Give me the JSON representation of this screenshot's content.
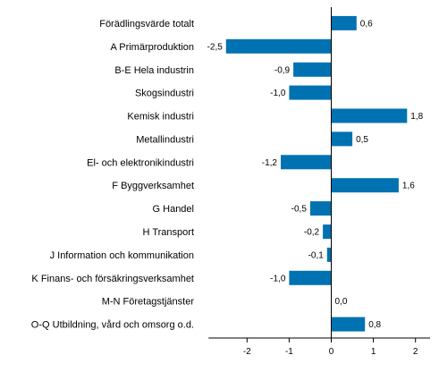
{
  "chart_data": {
    "type": "bar",
    "orientation": "horizontal",
    "categories": [
      "Förädlingsvärde totalt",
      "A Primärproduktion",
      "B-E Hela industrin",
      "Skogsindustri",
      "Kemisk industri",
      "Metallindustri",
      "El- och elektronikindustri",
      "F Byggverksamhet",
      "G Handel",
      "H Transport",
      "J Information och kommunikation",
      "K Finans- och försäkringsverksamhet",
      "M-N Företagstjänster",
      "O-Q Utbildning, vård och omsorg o.d."
    ],
    "values": [
      0.6,
      -2.5,
      -0.9,
      -1.0,
      1.8,
      0.5,
      -1.2,
      1.6,
      -0.5,
      -0.2,
      -0.1,
      -1.0,
      0.0,
      0.8
    ],
    "value_labels": [
      "0,6",
      "-2,5",
      "-0,9",
      "-1,0",
      "1,8",
      "0,5",
      "-1,2",
      "1,6",
      "-0,5",
      "-0,2",
      "-0,1",
      "-1,0",
      "0,0",
      "0,8"
    ],
    "xlim": [
      -3,
      2.4
    ],
    "xticks": [
      -2,
      -1,
      0,
      1,
      2
    ],
    "xtick_labels": [
      "-2",
      "-1",
      "0",
      "1",
      "2"
    ],
    "title": "",
    "xlabel": "",
    "ylabel": "",
    "grid": false,
    "bar_color": "#0072b2"
  }
}
